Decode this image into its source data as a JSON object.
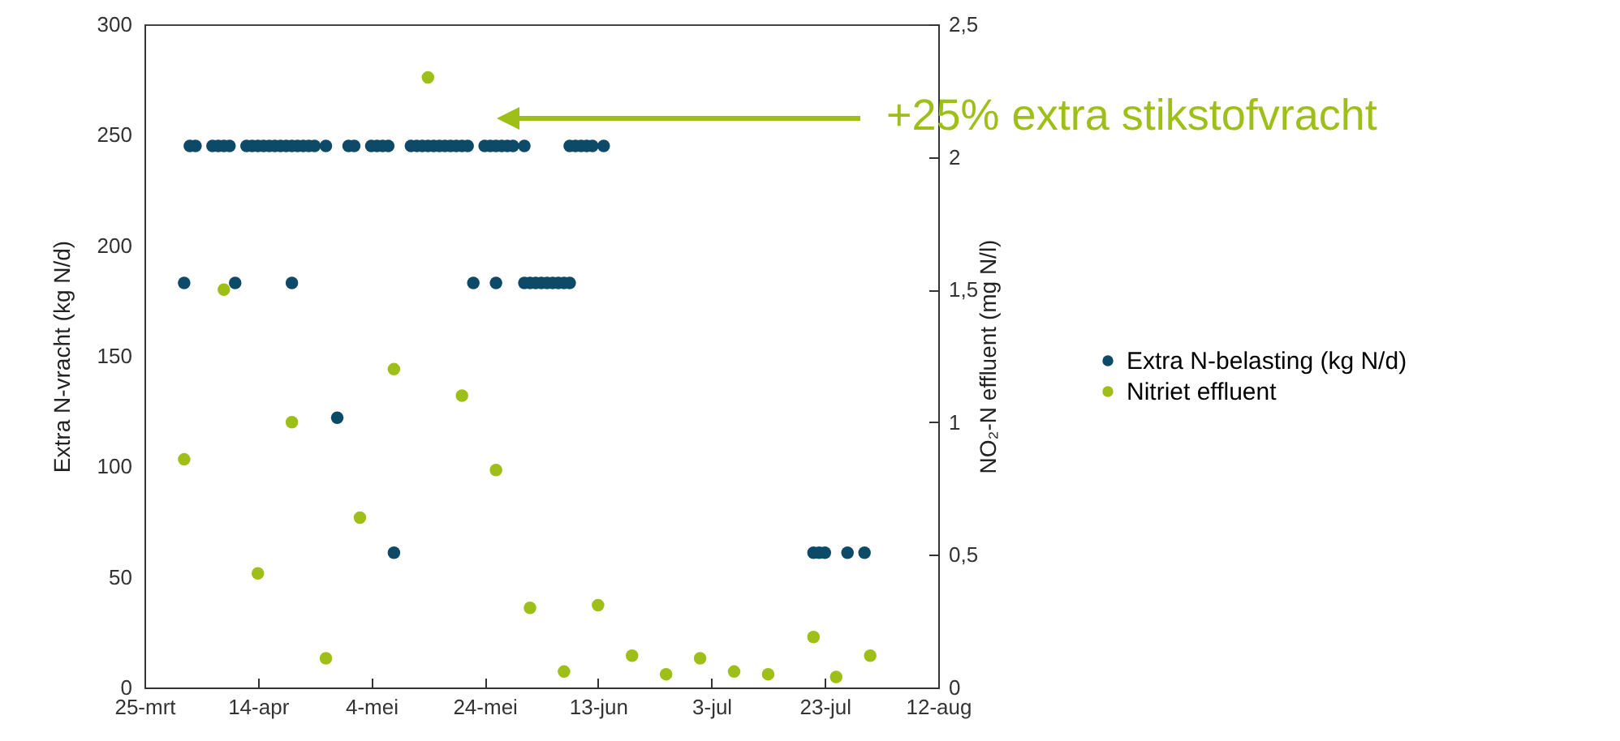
{
  "chart_data": {
    "type": "scatter",
    "ylabel": "Extra N-vracht (kg N/d)",
    "y2label": "NO₂-N effluent  (mg N/l)",
    "xlim": [
      "--03-25",
      "--08-12"
    ],
    "xticks": [
      {
        "value": "--03-25",
        "label": "25-mrt"
      },
      {
        "value": "--04-14",
        "label": "14-apr"
      },
      {
        "value": "--05-04",
        "label": "4-mei"
      },
      {
        "value": "--05-24",
        "label": "24-mei"
      },
      {
        "value": "--06-13",
        "label": "13-jun"
      },
      {
        "value": "--07-03",
        "label": "3-jul"
      },
      {
        "value": "--07-23",
        "label": "23-jul"
      },
      {
        "value": "--08-12",
        "label": "12-aug"
      }
    ],
    "ylim": [
      0,
      300
    ],
    "yticks": [
      0,
      50,
      100,
      150,
      200,
      250,
      300
    ],
    "y2lim": [
      0,
      2.5
    ],
    "y2ticks": [
      0,
      {
        "value": 0.5,
        "label": "0,5"
      },
      1,
      {
        "value": 1.5,
        "label": "1,5"
      },
      2,
      {
        "value": 2.5,
        "label": "2,5"
      }
    ],
    "marker": "circle",
    "legend": "right",
    "annotations": [
      "+25% extra stikstofvracht"
    ],
    "series": [
      {
        "name": "Extra N-belasting (kg N/d)",
        "color": "#0d4a67",
        "x": [
          "--04-02",
          "--04-03",
          "--04-06",
          "--04-07",
          "--04-08",
          "--04-09",
          "--04-12",
          "--04-13",
          "--04-14",
          "--04-15",
          "--04-16",
          "--04-17",
          "--04-18",
          "--04-19",
          "--04-20",
          "--04-21",
          "--04-22",
          "--04-23",
          "--04-24",
          "--04-26",
          "--04-30",
          "--05-01",
          "--05-04",
          "--05-05",
          "--05-06",
          "--05-07",
          "--05-11",
          "--05-12",
          "--05-13",
          "--05-14",
          "--05-15",
          "--05-16",
          "--05-17",
          "--05-18",
          "--05-19",
          "--05-20",
          "--05-21",
          "--05-24",
          "--05-25",
          "--05-26",
          "--05-27",
          "--05-28",
          "--05-29",
          "--05-31",
          "--06-08",
          "--06-09",
          "--06-10",
          "--06-11",
          "--06-12",
          "--06-14",
          "--04-01",
          "--04-10",
          "--04-20",
          "--05-22",
          "--05-26",
          "--05-31",
          "--06-01",
          "--06-02",
          "--06-03",
          "--06-04",
          "--06-05",
          "--06-06",
          "--06-07",
          "--06-08",
          "--04-28",
          "--05-08",
          "--07-21",
          "--07-22",
          "--07-23",
          "--07-27",
          "--07-30"
        ],
        "values": [
          245,
          245,
          245,
          245,
          245,
          245,
          245,
          245,
          245,
          245,
          245,
          245,
          245,
          245,
          245,
          245,
          245,
          245,
          245,
          245,
          245,
          245,
          245,
          245,
          245,
          245,
          245,
          245,
          245,
          245,
          245,
          245,
          245,
          245,
          245,
          245,
          245,
          245,
          245,
          245,
          245,
          245,
          245,
          245,
          245,
          245,
          245,
          245,
          245,
          245,
          183,
          183,
          183,
          183,
          183,
          183,
          183,
          183,
          183,
          183,
          183,
          183,
          183,
          183,
          122,
          61,
          61,
          61,
          61,
          61,
          61
        ]
      },
      {
        "name": "Nitriet effluent",
        "color": "#9dbf17",
        "axis": "y2",
        "x": [
          "--04-01",
          "--04-08",
          "--04-14",
          "--04-20",
          "--04-26",
          "--05-02",
          "--05-08",
          "--05-14",
          "--05-20",
          "--05-26",
          "--06-01",
          "--06-07",
          "--06-13",
          "--06-19",
          "--06-25",
          "--07-01",
          "--07-07",
          "--07-13",
          "--07-21",
          "--07-25",
          "--07-31"
        ],
        "values": [
          0.86,
          1.5,
          0.43,
          1.0,
          0.11,
          0.64,
          1.2,
          2.3,
          1.1,
          0.82,
          0.3,
          0.06,
          0.31,
          0.12,
          0.05,
          0.11,
          0.06,
          0.05,
          0.19,
          0.04,
          0.12
        ]
      }
    ]
  }
}
